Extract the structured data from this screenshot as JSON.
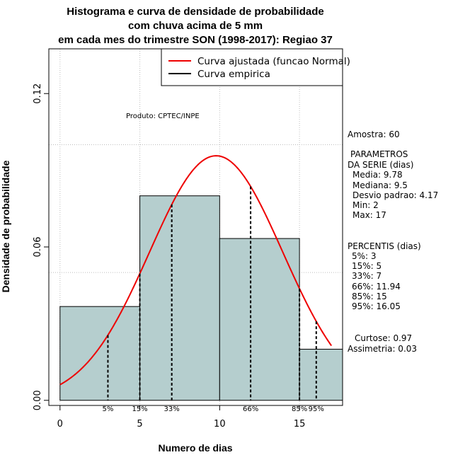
{
  "chart_data": {
    "type": "bar",
    "title_lines": [
      "Histograma e curva de densidade de probabilidade",
      "com chuva acima de 5 mm",
      "em cada mes do trimestre SON (1998-2017): Regiao 37"
    ],
    "xlabel": "Numero de dias",
    "ylabel": "Densidade de probabilidade",
    "xlim": [
      -0.7,
      17.7
    ],
    "ylim": [
      -0.002,
      0.1375
    ],
    "x_ticks": [
      0,
      5,
      10,
      15
    ],
    "x_tick_labels": [
      "0",
      "5",
      "10",
      "15"
    ],
    "y_ticks": [
      0.0,
      0.06,
      0.12
    ],
    "y_tick_labels": [
      "0.00",
      "0.06",
      "0.12"
    ],
    "grid_x": [
      0,
      5,
      10,
      15
    ],
    "grid_y": [
      0.05,
      0.1
    ],
    "bins": [
      {
        "x0": 0,
        "x1": 5,
        "density": 0.0367
      },
      {
        "x0": 5,
        "x1": 10,
        "density": 0.08
      },
      {
        "x0": 10,
        "x1": 15,
        "density": 0.0633
      },
      {
        "x0": 15,
        "x1": 17.7,
        "density": 0.02
      }
    ],
    "normal_fit": {
      "mean": 9.78,
      "sd": 4.17,
      "x_from": 0,
      "x_to": 17,
      "color": "#ee0000"
    },
    "percentile_lines": [
      {
        "x": 3,
        "label": "5%"
      },
      {
        "x": 5,
        "label": "15%"
      },
      {
        "x": 7,
        "label": "33%"
      },
      {
        "x": 11.94,
        "label": "66%"
      },
      {
        "x": 15,
        "label": "85%"
      },
      {
        "x": 16.05,
        "label": "95%"
      }
    ],
    "legend": [
      {
        "label": "Curva ajustada (funcao Normal)",
        "color": "#ee0000"
      },
      {
        "label": "Curva empirica",
        "color": "#000000"
      }
    ],
    "annotation": "Produto: CPTEC/INPE",
    "bar_color": "#b5cece",
    "side_text": {
      "sample": "Amostra: 60",
      "params_title": "PARAMETROS",
      "params_subtitle": "DA SERIE (dias)",
      "params": [
        "Media: 9.78",
        "Mediana: 9.5",
        "Desvio padrao: 4.17",
        "Min: 2",
        "Max: 17"
      ],
      "percentis_title": "PERCENTIS (dias)",
      "percentis": [
        "5%: 3",
        "15%: 5",
        "33%: 7",
        "66%: 11.94",
        "85%: 15",
        "95%: 16.05"
      ],
      "curtose": "Curtose: 0.97",
      "assimetria": "Assimetria: 0.03"
    }
  }
}
